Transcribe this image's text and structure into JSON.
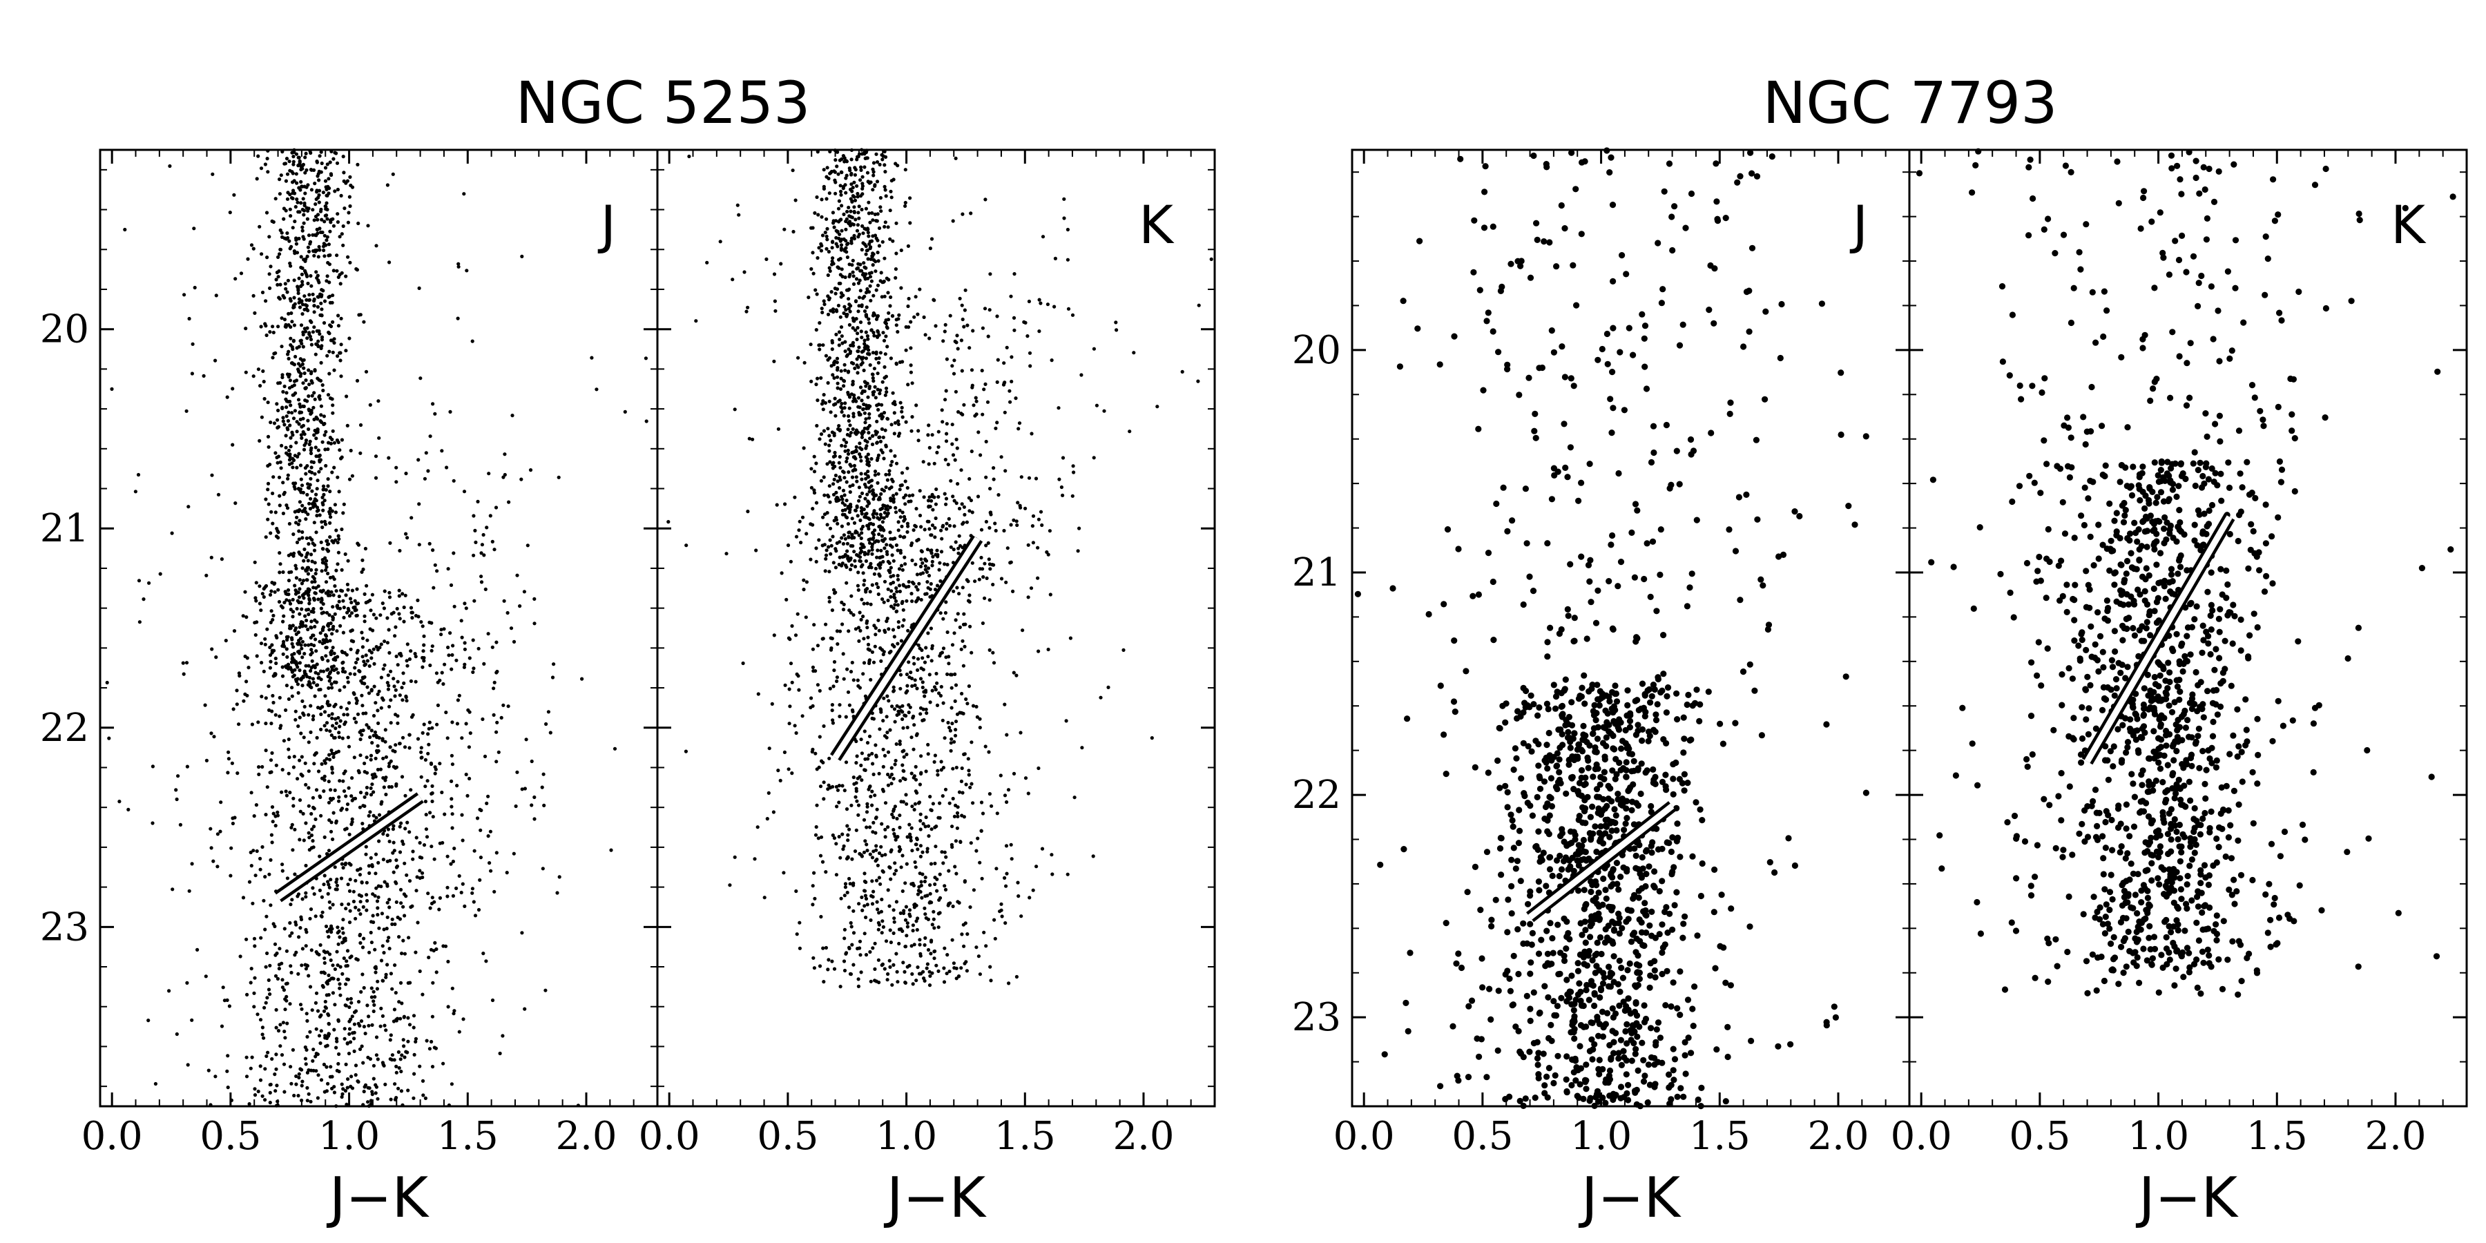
{
  "chart_data": [
    {
      "type": "scatter",
      "title": "NGC 5253",
      "xlabel": "J−K",
      "x_ticks": [
        "0.0",
        "0.5",
        "1.0",
        "1.5",
        "2.0"
      ],
      "y_ticks": [
        "20",
        "21",
        "22",
        "23"
      ],
      "xlim": [
        -0.05,
        2.3
      ],
      "ylim": [
        23.9,
        19.1
      ],
      "y_inverted": true,
      "panels": [
        {
          "band": "J",
          "fit_line": {
            "x": [
              0.7,
              1.3
            ],
            "y": [
              22.85,
              22.35
            ]
          },
          "populations": [
            {
              "n": 1100,
              "x_mean": 0.82,
              "x_sd": 0.09,
              "y_min": 19.1,
              "y_max": 21.8,
              "y_weight": "uniform"
            },
            {
              "n": 1300,
              "x_mean": 0.98,
              "x_sd": 0.22,
              "y_min": 21.3,
              "y_max": 23.9,
              "y_weight": "uniform"
            },
            {
              "n": 260,
              "x_mean": 1.35,
              "x_sd": 0.3,
              "y_min": 20.6,
              "y_max": 22.9,
              "y_weight": "uniform"
            },
            {
              "n": 240,
              "x_mean": 0.8,
              "x_sd": 0.5,
              "y_min": 19.1,
              "y_max": 23.9,
              "y_weight": "uniform"
            }
          ]
        },
        {
          "band": "K",
          "fit_line": {
            "x": [
              0.7,
              1.3
            ],
            "y": [
              22.15,
              21.05
            ]
          },
          "populations": [
            {
              "n": 1000,
              "x_mean": 0.8,
              "x_sd": 0.09,
              "y_min": 19.1,
              "y_max": 21.2,
              "y_weight": "uniform"
            },
            {
              "n": 1200,
              "x_mean": 0.97,
              "x_sd": 0.2,
              "y_min": 20.8,
              "y_max": 23.3,
              "y_weight": "uniform"
            },
            {
              "n": 260,
              "x_mean": 1.2,
              "x_sd": 0.25,
              "y_min": 19.8,
              "y_max": 21.3,
              "y_weight": "uniform"
            },
            {
              "n": 220,
              "x_mean": 0.9,
              "x_sd": 0.55,
              "y_min": 19.1,
              "y_max": 23.0,
              "y_weight": "uniform"
            }
          ]
        }
      ],
      "marker_radius": 2.6
    },
    {
      "type": "scatter",
      "title": "NGC 7793",
      "xlabel": "J−K",
      "x_ticks": [
        "0.0",
        "0.5",
        "1.0",
        "1.5",
        "2.0"
      ],
      "y_ticks": [
        "20",
        "21",
        "22",
        "23"
      ],
      "xlim": [
        -0.05,
        2.3
      ],
      "ylim": [
        23.4,
        19.1
      ],
      "y_inverted": true,
      "panels": [
        {
          "band": "J",
          "fit_line": {
            "x": [
              0.7,
              1.3
            ],
            "y": [
              22.55,
              22.05
            ]
          },
          "populations": [
            {
              "n": 950,
              "x_mean": 1.0,
              "x_sd": 0.2,
              "y_min": 21.5,
              "y_max": 23.4,
              "y_weight": "uniform"
            },
            {
              "n": 420,
              "x_mean": 1.0,
              "x_sd": 0.45,
              "y_min": 19.1,
              "y_max": 23.4,
              "y_weight": "uniform"
            }
          ]
        },
        {
          "band": "K",
          "fit_line": {
            "x": [
              0.7,
              1.3
            ],
            "y": [
              21.85,
              20.75
            ]
          },
          "populations": [
            {
              "n": 900,
              "x_mean": 1.0,
              "x_sd": 0.2,
              "y_min": 20.5,
              "y_max": 22.8,
              "y_weight": "uniform"
            },
            {
              "n": 400,
              "x_mean": 1.0,
              "x_sd": 0.45,
              "y_min": 19.1,
              "y_max": 22.9,
              "y_weight": "uniform"
            }
          ]
        }
      ],
      "marker_radius": 4.6
    }
  ]
}
